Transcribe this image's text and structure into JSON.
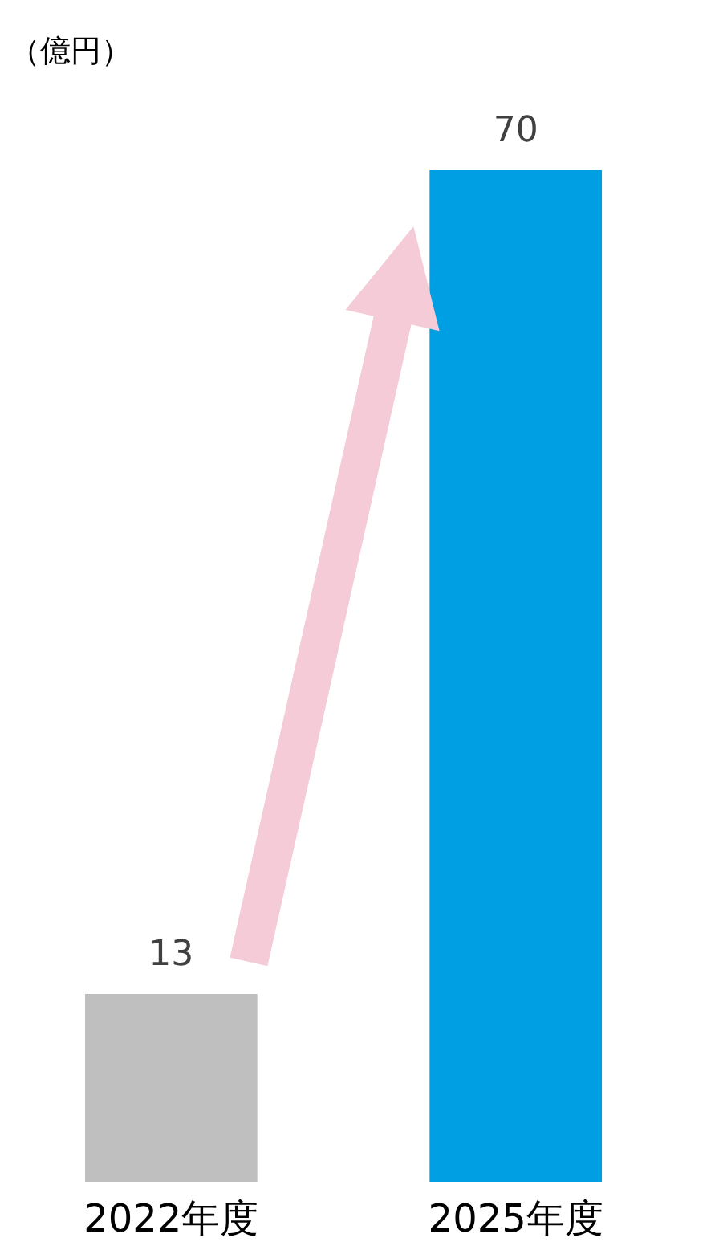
{
  "chart_data": {
    "type": "bar",
    "ylabel": "（億円）",
    "categories": [
      "2022年度",
      "2025年度"
    ],
    "values": [
      13,
      70
    ],
    "colors": [
      "#bfbfbf",
      "#009fe3"
    ],
    "data_labels": true
  }
}
